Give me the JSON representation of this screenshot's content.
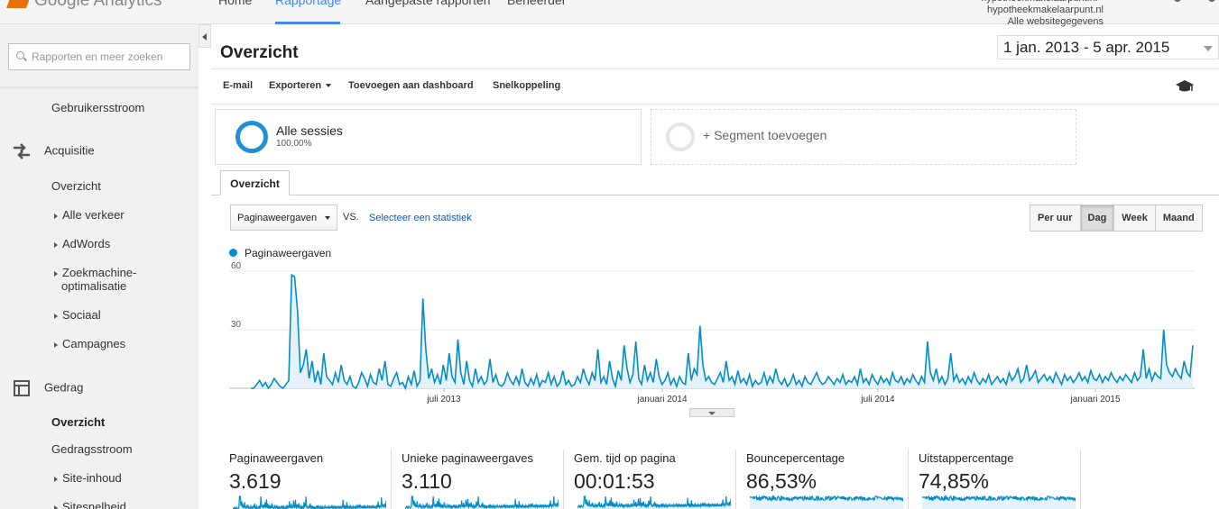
{
  "brand": {
    "name": "Google Analytics"
  },
  "nav": {
    "tabs": [
      {
        "label": "Home"
      },
      {
        "label": "Rapportage"
      },
      {
        "label": "Aangepaste rapporten"
      },
      {
        "label": "Beheerder"
      }
    ],
    "account_line1": "hypotheekmakelaarpunt.nl - hypotheekmakelaarpunt.nl",
    "account_line2": "Alle websitegegevens"
  },
  "sidebar": {
    "search_placeholder": "Rapporten en meer zoeken",
    "items": {
      "gebruikersstroom": "Gebruikersstroom",
      "acquisitie": "Acquisitie",
      "acq_overzicht": "Overzicht",
      "alle_verkeer": "Alle verkeer",
      "adwords": "AdWords",
      "seo_line1": "Zoekmachine-",
      "seo_line2": "optimalisatie",
      "sociaal": "Sociaal",
      "campagnes": "Campagnes",
      "gedrag": "Gedrag",
      "ged_overzicht": "Overzicht",
      "gedragsstroom": "Gedragsstroom",
      "site_inhoud": "Site-inhoud",
      "sitesnelheid": "Sitesnelheid"
    }
  },
  "main": {
    "title": "Overzicht",
    "date_range": "1 jan. 2013 - 5 apr. 2015",
    "toolbar": {
      "email": "E-mail",
      "export": "Exporteren",
      "add_dashboard": "Toevoegen aan dashboard",
      "shortcut": "Snelkoppeling"
    },
    "segments": {
      "all_name": "Alle sessies",
      "all_pct": "100,00%",
      "add_label": "+ Segment toevoegen"
    },
    "tab": "Overzicht",
    "metric_select": "Paginaweergaven",
    "vs": "VS.",
    "compare_link": "Selecteer een statistiek",
    "periods": [
      "Per uur",
      "Dag",
      "Week",
      "Maand"
    ],
    "active_period": "Dag"
  },
  "chart_data": {
    "type": "line",
    "series": [
      {
        "name": "Paginaweergaven",
        "values": [
          0,
          0,
          2,
          4,
          1,
          3,
          0,
          2,
          5,
          3,
          1,
          0,
          2,
          4,
          58,
          57,
          40,
          8,
          12,
          20,
          5,
          14,
          3,
          9,
          2,
          18,
          6,
          4,
          2,
          8,
          3,
          12,
          4,
          2,
          6,
          1,
          0,
          3,
          8,
          5,
          1,
          7,
          3,
          2,
          10,
          4,
          14,
          2,
          1,
          5,
          8,
          2,
          3,
          0,
          6,
          2,
          9,
          1,
          4,
          46,
          20,
          5,
          10,
          3,
          7,
          2,
          12,
          4,
          18,
          6,
          3,
          25,
          8,
          2,
          14,
          4,
          1,
          10,
          3,
          6,
          2,
          4,
          15,
          3,
          7,
          2,
          1,
          3,
          8,
          4,
          2,
          6,
          2,
          10,
          3,
          1,
          5,
          2,
          7,
          1,
          4,
          3,
          8,
          2,
          6,
          1,
          3,
          9,
          2,
          4,
          1,
          2,
          6,
          3,
          10,
          5,
          2,
          8,
          4,
          20,
          3,
          6,
          2,
          14,
          5,
          1,
          9,
          4,
          22,
          10,
          3,
          7,
          24,
          5,
          2,
          12,
          4,
          8,
          3,
          15,
          6,
          2,
          4,
          8,
          2,
          5,
          1,
          6,
          3,
          2,
          18,
          4,
          10,
          7,
          32,
          12,
          4,
          6,
          3,
          2,
          5,
          8,
          3,
          14,
          4,
          6,
          2,
          9,
          3,
          5,
          2,
          7,
          1,
          4,
          2,
          3,
          8,
          2,
          6,
          3,
          10,
          4,
          2,
          5,
          1,
          3,
          7,
          2,
          4,
          1,
          6,
          3,
          2,
          5,
          8,
          4,
          2,
          3,
          6,
          4,
          2,
          5,
          3,
          7,
          2,
          4,
          3,
          6,
          2,
          10,
          3,
          5,
          2,
          7,
          4,
          2,
          6,
          3,
          5,
          2,
          8,
          4,
          3,
          6,
          2,
          5,
          3,
          7,
          4,
          2,
          6,
          3,
          24,
          8,
          4,
          10,
          3,
          6,
          2,
          5,
          18,
          4,
          7,
          3,
          5,
          2,
          6,
          3,
          8,
          4,
          2,
          5,
          3,
          7,
          2,
          4,
          6,
          3,
          5,
          2,
          8,
          4,
          6,
          10,
          3,
          5,
          12,
          4,
          6,
          9,
          3,
          5,
          7,
          4,
          6,
          3,
          8,
          5,
          2,
          7,
          4,
          6,
          3,
          5,
          8,
          4,
          6,
          3,
          9,
          5,
          4,
          7,
          3,
          6,
          4,
          8,
          5,
          3,
          6,
          4,
          7,
          5,
          3,
          8,
          4,
          6,
          20,
          5,
          10,
          4,
          8,
          6,
          5,
          30,
          12,
          8,
          6,
          10,
          7,
          5,
          14,
          8,
          6,
          22
        ],
        "color": "#058dc7"
      }
    ],
    "x_ticks": [
      "juli 2013",
      "januari 2014",
      "juli 2014",
      "januari 2015"
    ],
    "y_ticks": [
      "60",
      "30"
    ],
    "ylim": [
      0,
      60
    ]
  },
  "scorecards": [
    {
      "label": "Paginaweergaven",
      "value": "3.619"
    },
    {
      "label": "Unieke paginaweergaves",
      "value": "3.110"
    },
    {
      "label": "Gem. tijd op pagina",
      "value": "00:01:53"
    },
    {
      "label": "Bouncepercentage",
      "value": "86,53%"
    },
    {
      "label": "Uitstappercentage",
      "value": "74,85%"
    }
  ]
}
